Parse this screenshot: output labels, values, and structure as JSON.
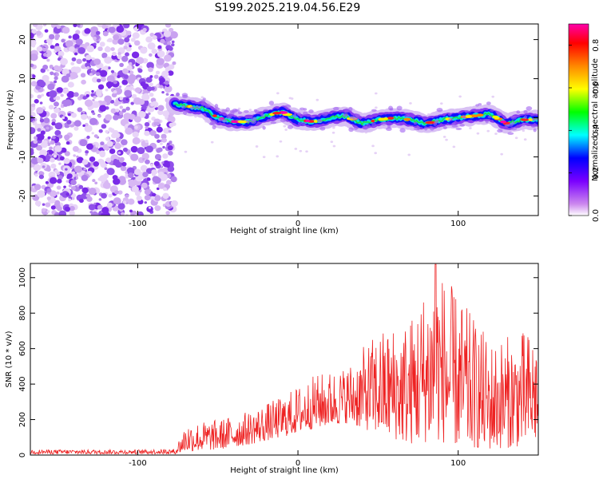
{
  "title": "S199.2025.219.04.56.E29",
  "chart_data": [
    {
      "type": "heatmap",
      "xlabel": "Height of straight line (km)",
      "ylabel": "Frequency (Hz)",
      "xlim": [
        -167,
        150
      ],
      "ylim": [
        -25,
        24
      ],
      "xticks": [
        -100,
        0,
        100
      ],
      "yticks": [
        -20,
        -10,
        0,
        10,
        20
      ],
      "colorbar": {
        "label": "Normalized spectral amplitude",
        "range": [
          0,
          0.9
        ],
        "ticks": [
          0.0,
          0.2,
          0.4,
          0.6,
          0.8
        ],
        "colors": [
          "#ffffff",
          "#cc88ee",
          "#7a00ff",
          "#0000ff",
          "#00ffff",
          "#00ff00",
          "#ffff00",
          "#ff8800",
          "#ff0000",
          "#ff00aa"
        ]
      },
      "noise_region_x": [
        -167,
        -77
      ],
      "ridge": [
        {
          "x": -77,
          "f": 3.5
        },
        {
          "x": -70,
          "f": 3.0
        },
        {
          "x": -60,
          "f": 2.5
        },
        {
          "x": -50,
          "f": 0.0
        },
        {
          "x": -40,
          "f": -1.0
        },
        {
          "x": -30,
          "f": -1.0
        },
        {
          "x": -20,
          "f": 0.5
        },
        {
          "x": -10,
          "f": 1.5
        },
        {
          "x": 0,
          "f": -0.5
        },
        {
          "x": 10,
          "f": -1.0
        },
        {
          "x": 20,
          "f": 0.0
        },
        {
          "x": 30,
          "f": 0.5
        },
        {
          "x": 40,
          "f": -1.5
        },
        {
          "x": 50,
          "f": -0.5
        },
        {
          "x": 60,
          "f": 0.0
        },
        {
          "x": 70,
          "f": -0.5
        },
        {
          "x": 80,
          "f": -1.5
        },
        {
          "x": 90,
          "f": -0.5
        },
        {
          "x": 100,
          "f": 0.0
        },
        {
          "x": 110,
          "f": 0.5
        },
        {
          "x": 120,
          "f": 1.0
        },
        {
          "x": 130,
          "f": -1.5
        },
        {
          "x": 140,
          "f": -0.5
        },
        {
          "x": 150,
          "f": -0.5
        }
      ]
    },
    {
      "type": "line",
      "xlabel": "Height of straight line (km)",
      "ylabel": "SNR (10 * v/v)",
      "xlim": [
        -167,
        150
      ],
      "ylim": [
        0,
        1080
      ],
      "xticks": [
        -100,
        0,
        100
      ],
      "yticks": [
        0,
        200,
        400,
        600,
        800,
        1000
      ],
      "series": [
        {
          "color": "#ee2222",
          "envelope": [
            {
              "x": -167,
              "low": 5,
              "high": 30
            },
            {
              "x": -100,
              "low": 5,
              "high": 30
            },
            {
              "x": -77,
              "low": 5,
              "high": 35
            },
            {
              "x": -70,
              "low": 20,
              "high": 180
            },
            {
              "x": -50,
              "low": 30,
              "high": 200
            },
            {
              "x": -30,
              "low": 60,
              "high": 250
            },
            {
              "x": -10,
              "low": 100,
              "high": 330
            },
            {
              "x": 10,
              "low": 150,
              "high": 450
            },
            {
              "x": 30,
              "low": 180,
              "high": 500
            },
            {
              "x": 50,
              "low": 120,
              "high": 700
            },
            {
              "x": 70,
              "low": 60,
              "high": 780
            },
            {
              "x": 86,
              "low": 80,
              "high": 1080
            },
            {
              "x": 100,
              "low": 50,
              "high": 900
            },
            {
              "x": 120,
              "low": 30,
              "high": 650
            },
            {
              "x": 140,
              "low": 50,
              "high": 700
            },
            {
              "x": 150,
              "low": 80,
              "high": 700
            }
          ]
        }
      ]
    }
  ]
}
